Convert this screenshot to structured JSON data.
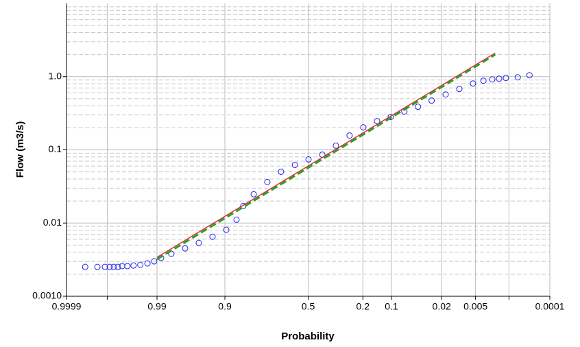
{
  "chart_data": {
    "type": "scatter",
    "x_label": "Probability",
    "y_label": "Flow (m3/s)",
    "x_scale": "normal-probability",
    "y_scale": "log",
    "grid": true,
    "xlim": [
      0.9999,
      0.0001
    ],
    "xticks": [
      0.9999,
      0.99,
      0.9,
      0.5,
      0.2,
      0.1,
      0.02,
      0.005,
      0.0001
    ],
    "minor_xticks": [
      0.999,
      0.001
    ],
    "ylim": [
      0.001,
      10
    ],
    "yticks": [
      {
        "value": 0.001,
        "label": "0.0010"
      },
      0.01,
      0.1,
      {
        "value": 1,
        "label": "1.0"
      }
    ],
    "series": [
      {
        "type": "scatter",
        "color": "#2020ee",
        "x": [
          0.9997,
          0.99941,
          0.99912,
          0.99887,
          0.99861,
          0.9983,
          0.9979,
          0.9973,
          0.9964,
          0.9951,
          0.9933,
          0.9911,
          0.9882,
          0.9824,
          0.9709,
          0.9538,
          0.9295,
          0.8963,
          0.865,
          0.841,
          0.799,
          0.735,
          0.662,
          0.581,
          0.498,
          0.414,
          0.335,
          0.262,
          0.198,
          0.1446,
          0.102,
          0.0694,
          0.0455,
          0.0287,
          0.0172,
          0.01,
          0.0056,
          0.0035,
          0.0023,
          0.00165,
          0.00117,
          0.00063,
          0.00033
        ],
        "values": [
          0.00252,
          0.00252,
          0.00252,
          0.00252,
          0.00252,
          0.00252,
          0.00258,
          0.00258,
          0.00263,
          0.00269,
          0.00281,
          0.003,
          0.00334,
          0.0038,
          0.00451,
          0.00536,
          0.0065,
          0.0081,
          0.0111,
          0.0171,
          0.0247,
          0.0364,
          0.0502,
          0.0623,
          0.074,
          0.086,
          0.114,
          0.157,
          0.203,
          0.247,
          0.281,
          0.334,
          0.388,
          0.471,
          0.571,
          0.679,
          0.807,
          0.879,
          0.918,
          0.938,
          0.958,
          0.979,
          1.045
        ]
      },
      {
        "type": "line",
        "color": "#e03030",
        "style": "solid",
        "x": [
          0.99,
          0.002
        ],
        "values": [
          0.0034,
          2.1
        ]
      },
      {
        "type": "line",
        "color": "#2ca02c",
        "style": "dashed",
        "x": [
          0.99,
          0.002
        ],
        "values": [
          0.0032,
          2.0
        ]
      }
    ]
  }
}
